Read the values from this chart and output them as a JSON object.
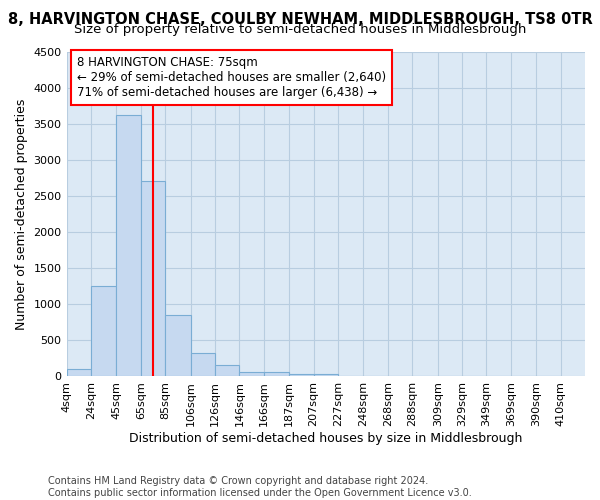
{
  "title": "8, HARVINGTON CHASE, COULBY NEWHAM, MIDDLESBROUGH, TS8 0TR",
  "subtitle": "Size of property relative to semi-detached houses in Middlesbrough",
  "xlabel": "Distribution of semi-detached houses by size in Middlesbrough",
  "ylabel": "Number of semi-detached properties",
  "footer": [
    "Contains HM Land Registry data © Crown copyright and database right 2024.",
    "Contains public sector information licensed under the Open Government Licence v3.0."
  ],
  "bar_left_edges": [
    4,
    24,
    45,
    65,
    85,
    106,
    126,
    146,
    166,
    187,
    207,
    227,
    248,
    268,
    288,
    309,
    329,
    349,
    369,
    390
  ],
  "bar_widths": [
    20,
    21,
    20,
    20,
    21,
    20,
    20,
    20,
    21,
    20,
    20,
    21,
    20,
    20,
    21,
    20,
    20,
    20,
    21,
    20
  ],
  "bar_heights": [
    100,
    1250,
    3620,
    2700,
    850,
    330,
    160,
    60,
    60,
    30,
    30,
    0,
    0,
    0,
    0,
    0,
    0,
    0,
    0,
    0
  ],
  "bar_color": "#c6d9f0",
  "bar_edgecolor": "#7aadd4",
  "grid_color": "#b8cde0",
  "property_size": 75,
  "vline_color": "red",
  "annotation_line1": "8 HARVINGTON CHASE: 75sqm",
  "annotation_line2": "← 29% of semi-detached houses are smaller (2,640)",
  "annotation_line3": "71% of semi-detached houses are larger (6,438) →",
  "ylim": [
    0,
    4500
  ],
  "yticks": [
    0,
    500,
    1000,
    1500,
    2000,
    2500,
    3000,
    3500,
    4000,
    4500
  ],
  "xtick_labels": [
    "4sqm",
    "24sqm",
    "45sqm",
    "65sqm",
    "85sqm",
    "106sqm",
    "126sqm",
    "146sqm",
    "166sqm",
    "187sqm",
    "207sqm",
    "227sqm",
    "248sqm",
    "268sqm",
    "288sqm",
    "309sqm",
    "329sqm",
    "349sqm",
    "369sqm",
    "390sqm",
    "410sqm"
  ],
  "xtick_positions": [
    4,
    24,
    45,
    65,
    85,
    106,
    126,
    146,
    166,
    187,
    207,
    227,
    248,
    268,
    288,
    309,
    329,
    349,
    369,
    390,
    410
  ],
  "bg_color": "#dce9f5",
  "fig_bg_color": "#ffffff",
  "title_fontsize": 10.5,
  "subtitle_fontsize": 9.5,
  "axis_label_fontsize": 9,
  "tick_fontsize": 8,
  "footer_fontsize": 7,
  "annotation_fontsize": 8.5
}
